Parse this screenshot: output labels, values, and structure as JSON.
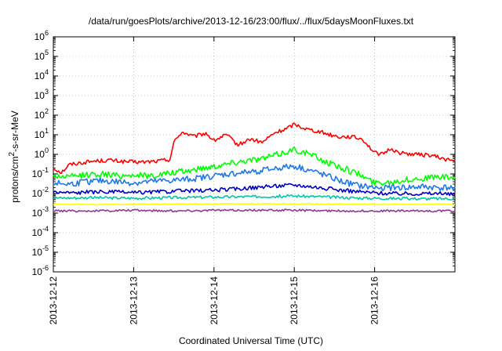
{
  "chart_data": {
    "type": "line",
    "title": "/data/run/goesPlots/archive/2013-12-16/23:00/flux/../flux/5daysMoonFluxes.txt",
    "xlabel": "Coordinated Universal Time (UTC)",
    "ylabel_main": "protons/cm",
    "ylabel_sup": "2",
    "ylabel_tail": "-s-sr-MeV",
    "x_tick_labels": [
      "2013-12-12",
      "2013-12-13",
      "2013-12-14",
      "2013-12-15",
      "2013-12-16"
    ],
    "xlim": [
      0,
      5
    ],
    "y_scale": "log",
    "ylim": [
      1e-06,
      1000000.0
    ],
    "y_tick_exponents": [
      -6,
      -5,
      -4,
      -3,
      -2,
      -1,
      0,
      1,
      2,
      3,
      4,
      5,
      6
    ],
    "grid": true,
    "series": [
      {
        "color": "#ff0000",
        "x": [
          0,
          0.1,
          0.2,
          0.3,
          0.5,
          0.7,
          0.9,
          1.1,
          1.3,
          1.45,
          1.5,
          1.6,
          1.75,
          1.9,
          2.0,
          2.15,
          2.3,
          2.45,
          2.6,
          2.75,
          2.9,
          3.0,
          3.15,
          3.3,
          3.45,
          3.55,
          3.7,
          3.85,
          4.0,
          4.1,
          4.2,
          4.3,
          4.5,
          4.7,
          4.85,
          5.0
        ],
        "y": [
          0.2,
          0.12,
          0.3,
          0.35,
          0.45,
          0.5,
          0.42,
          0.4,
          0.45,
          0.55,
          4,
          14,
          8,
          12,
          5,
          10,
          3,
          6,
          4,
          12,
          20,
          35,
          20,
          15,
          10,
          8,
          8,
          6,
          1.2,
          1.0,
          2.0,
          1.2,
          1.0,
          0.9,
          0.6,
          0.45
        ]
      },
      {
        "color": "#00ff00",
        "x": [
          0,
          0.2,
          0.4,
          0.6,
          0.8,
          1.0,
          1.2,
          1.4,
          1.6,
          1.8,
          2.0,
          2.2,
          2.4,
          2.6,
          2.8,
          3.0,
          3.2,
          3.4,
          3.6,
          3.8,
          4.0,
          4.2,
          4.4,
          4.6,
          4.8,
          5.0
        ],
        "y": [
          0.08,
          0.07,
          0.09,
          0.1,
          0.08,
          0.09,
          0.08,
          0.1,
          0.13,
          0.18,
          0.25,
          0.35,
          0.5,
          0.6,
          1.0,
          1.8,
          1.0,
          0.4,
          0.2,
          0.1,
          0.035,
          0.04,
          0.05,
          0.06,
          0.07,
          0.06
        ]
      },
      {
        "color": "#1e78e6",
        "x": [
          0,
          0.2,
          0.4,
          0.6,
          0.8,
          1.0,
          1.2,
          1.4,
          1.6,
          1.8,
          2.0,
          2.2,
          2.4,
          2.6,
          2.8,
          3.0,
          3.2,
          3.4,
          3.6,
          3.8,
          4.0,
          4.2,
          4.4,
          4.6,
          4.8,
          5.0
        ],
        "y": [
          0.035,
          0.03,
          0.04,
          0.045,
          0.04,
          0.035,
          0.04,
          0.045,
          0.05,
          0.06,
          0.08,
          0.1,
          0.12,
          0.15,
          0.2,
          0.25,
          0.15,
          0.08,
          0.04,
          0.025,
          0.02,
          0.02,
          0.02,
          0.022,
          0.02,
          0.02
        ]
      },
      {
        "color": "#0000c8",
        "x": [
          0,
          0.25,
          0.5,
          0.75,
          1.0,
          1.25,
          1.5,
          1.75,
          2.0,
          2.25,
          2.5,
          2.75,
          3.0,
          3.25,
          3.5,
          3.75,
          4.0,
          4.25,
          4.5,
          4.75,
          5.0
        ],
        "y": [
          0.012,
          0.011,
          0.012,
          0.012,
          0.011,
          0.012,
          0.013,
          0.014,
          0.015,
          0.017,
          0.02,
          0.024,
          0.028,
          0.022,
          0.016,
          0.013,
          0.011,
          0.01,
          0.01,
          0.01,
          0.009
        ]
      },
      {
        "color": "#00c8a0",
        "x": [
          0,
          0.25,
          0.5,
          0.75,
          1.0,
          1.25,
          1.5,
          1.75,
          2.0,
          2.25,
          2.5,
          2.75,
          3.0,
          3.25,
          3.5,
          3.75,
          4.0,
          4.25,
          4.5,
          4.75,
          5.0
        ],
        "y": [
          0.006,
          0.006,
          0.0062,
          0.006,
          0.0058,
          0.006,
          0.0062,
          0.0064,
          0.0066,
          0.0068,
          0.007,
          0.0072,
          0.0075,
          0.007,
          0.0065,
          0.006,
          0.0058,
          0.0056,
          0.0055,
          0.0055,
          0.0055
        ]
      },
      {
        "color": "#ffff00",
        "x": [
          0,
          0.5,
          1.0,
          1.5,
          2.0,
          2.5,
          3.0,
          3.5,
          4.0,
          4.5,
          5.0
        ],
        "y": [
          0.0028,
          0.0028,
          0.0028,
          0.0029,
          0.0029,
          0.003,
          0.003,
          0.0029,
          0.0028,
          0.0028,
          0.0028
        ]
      },
      {
        "color": "#8c3c8c",
        "x": [
          0,
          0.5,
          1.0,
          1.5,
          2.0,
          2.5,
          3.0,
          3.5,
          4.0,
          4.5,
          5.0
        ],
        "y": [
          0.0013,
          0.0013,
          0.0014,
          0.0013,
          0.0014,
          0.0014,
          0.0014,
          0.0013,
          0.0013,
          0.0013,
          0.0013
        ]
      }
    ]
  }
}
